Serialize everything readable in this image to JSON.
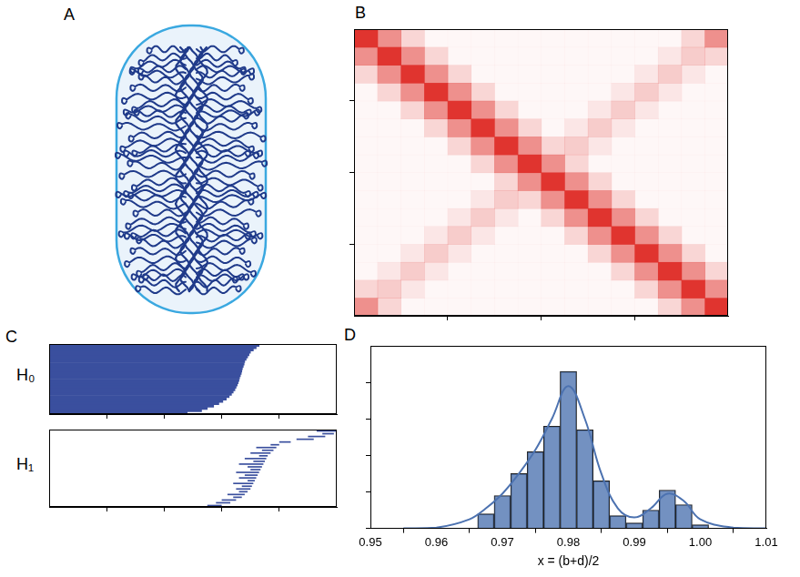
{
  "diagram": {
    "panel": "A"
  },
  "chart_data": [
    {
      "panel": "B",
      "type": "heatmap",
      "color": "#e0342f",
      "xlim": [
        -0.5,
        15.5
      ],
      "ylim": [
        -0.5,
        15.5
      ],
      "xticks": [
        3.5,
        7.5,
        11.5
      ],
      "yticks": [
        3.5,
        7.5,
        11.5
      ],
      "tick_labels": false,
      "cells": [
        [
          1,
          0.55,
          0.2,
          0.04,
          0.04,
          0.04,
          0.04,
          0.04,
          0.04,
          0.04,
          0.04,
          0.04,
          0.04,
          0.04,
          0.2,
          0.55
        ],
        [
          0.55,
          1,
          0.55,
          0.2,
          0.04,
          0.04,
          0.04,
          0.04,
          0.04,
          0.04,
          0.04,
          0.04,
          0.04,
          0.12,
          0.25,
          0.2
        ],
        [
          0.2,
          0.55,
          1,
          0.55,
          0.2,
          0.04,
          0.04,
          0.04,
          0.04,
          0.04,
          0.04,
          0.04,
          0.12,
          0.25,
          0.12,
          0.04
        ],
        [
          0.04,
          0.2,
          0.55,
          1,
          0.55,
          0.2,
          0.04,
          0.04,
          0.04,
          0.04,
          0.04,
          0.12,
          0.25,
          0.12,
          0.04,
          0.04
        ],
        [
          0.04,
          0.04,
          0.2,
          0.55,
          1,
          0.55,
          0.2,
          0.04,
          0.04,
          0.04,
          0.12,
          0.25,
          0.12,
          0.04,
          0.04,
          0.04
        ],
        [
          0.04,
          0.04,
          0.04,
          0.2,
          0.55,
          1,
          0.55,
          0.2,
          0.04,
          0.12,
          0.25,
          0.12,
          0.04,
          0.04,
          0.04,
          0.04
        ],
        [
          0.04,
          0.04,
          0.04,
          0.04,
          0.2,
          0.55,
          1,
          0.55,
          0.2,
          0.25,
          0.12,
          0.04,
          0.04,
          0.04,
          0.04,
          0.04
        ],
        [
          0.04,
          0.04,
          0.04,
          0.04,
          0.04,
          0.2,
          0.55,
          1,
          0.55,
          0.2,
          0.04,
          0.04,
          0.04,
          0.04,
          0.04,
          0.04
        ],
        [
          0.04,
          0.04,
          0.04,
          0.04,
          0.04,
          0.04,
          0.2,
          0.55,
          1,
          0.55,
          0.2,
          0.04,
          0.04,
          0.04,
          0.04,
          0.04
        ],
        [
          0.04,
          0.04,
          0.04,
          0.04,
          0.04,
          0.12,
          0.25,
          0.2,
          0.55,
          1,
          0.55,
          0.2,
          0.04,
          0.04,
          0.04,
          0.04
        ],
        [
          0.04,
          0.04,
          0.04,
          0.04,
          0.12,
          0.25,
          0.12,
          0.04,
          0.2,
          0.55,
          1,
          0.55,
          0.2,
          0.04,
          0.04,
          0.04
        ],
        [
          0.04,
          0.04,
          0.04,
          0.12,
          0.25,
          0.12,
          0.04,
          0.04,
          0.04,
          0.2,
          0.55,
          1,
          0.55,
          0.2,
          0.04,
          0.04
        ],
        [
          0.04,
          0.04,
          0.12,
          0.25,
          0.12,
          0.04,
          0.04,
          0.04,
          0.04,
          0.04,
          0.2,
          0.55,
          1,
          0.55,
          0.2,
          0.04
        ],
        [
          0.04,
          0.12,
          0.25,
          0.12,
          0.04,
          0.04,
          0.04,
          0.04,
          0.04,
          0.04,
          0.04,
          0.2,
          0.55,
          1,
          0.55,
          0.2
        ],
        [
          0.2,
          0.25,
          0.12,
          0.04,
          0.04,
          0.04,
          0.04,
          0.04,
          0.04,
          0.04,
          0.04,
          0.04,
          0.2,
          0.55,
          1,
          0.55
        ],
        [
          0.55,
          0.2,
          0.04,
          0.04,
          0.04,
          0.04,
          0.04,
          0.04,
          0.04,
          0.04,
          0.04,
          0.04,
          0.04,
          0.2,
          0.55,
          1
        ]
      ]
    },
    {
      "panel": "C",
      "type": "barcode",
      "label": "H₀",
      "color": "#3a4f9e",
      "xlim": [
        0,
        1
      ],
      "xticks": [
        0.2,
        0.4,
        0.6,
        0.8
      ],
      "tick_labels": false,
      "intervals": [
        [
          0,
          0.73
        ],
        [
          0,
          0.72
        ],
        [
          0,
          0.71
        ],
        [
          0,
          0.7
        ],
        [
          0,
          0.695
        ],
        [
          0,
          0.69
        ],
        [
          0,
          0.685
        ],
        [
          0,
          0.68
        ],
        [
          0,
          0.678
        ],
        [
          0,
          0.675
        ],
        [
          0,
          0.672
        ],
        [
          0,
          0.67
        ],
        [
          0,
          0.668
        ],
        [
          0,
          0.665
        ],
        [
          0,
          0.662
        ],
        [
          0,
          0.66
        ],
        [
          0,
          0.657
        ],
        [
          0,
          0.654
        ],
        [
          0,
          0.65
        ],
        [
          0,
          0.646
        ],
        [
          0,
          0.64
        ],
        [
          0,
          0.634
        ],
        [
          0,
          0.626
        ],
        [
          0,
          0.616
        ],
        [
          0,
          0.604
        ],
        [
          0,
          0.59
        ],
        [
          0,
          0.572
        ],
        [
          0,
          0.55
        ],
        [
          0,
          0.53
        ],
        [
          0,
          0.48
        ]
      ]
    },
    {
      "type": "barcode",
      "label": "H₁",
      "color": "#3a4f9e",
      "xlim": [
        0,
        1
      ],
      "xticks": [
        0.2,
        0.4,
        0.6,
        0.8
      ],
      "tick_labels": false,
      "intervals": [
        [
          0.93,
          1.0
        ],
        [
          0.95,
          0.99
        ],
        [
          0.9,
          0.96
        ],
        [
          0.86,
          0.92
        ],
        [
          0.8,
          0.84
        ],
        [
          0.77,
          0.8
        ],
        [
          0.72,
          0.79
        ],
        [
          0.74,
          0.78
        ],
        [
          0.7,
          0.77
        ],
        [
          0.73,
          0.76
        ],
        [
          0.68,
          0.755
        ],
        [
          0.71,
          0.75
        ],
        [
          0.66,
          0.745
        ],
        [
          0.69,
          0.74
        ],
        [
          0.7,
          0.735
        ],
        [
          0.65,
          0.73
        ],
        [
          0.68,
          0.725
        ],
        [
          0.66,
          0.72
        ],
        [
          0.69,
          0.715
        ],
        [
          0.64,
          0.71
        ],
        [
          0.67,
          0.705
        ],
        [
          0.65,
          0.7
        ],
        [
          0.66,
          0.69
        ],
        [
          0.62,
          0.68
        ],
        [
          0.64,
          0.67
        ],
        [
          0.6,
          0.65
        ],
        [
          0.58,
          0.63
        ],
        [
          0.55,
          0.6
        ]
      ]
    },
    {
      "panel": "D",
      "type": "histogram",
      "x_label": "x = (b+d)/2",
      "color": "#4c72b0",
      "bins": [
        0.96625,
        0.96875,
        0.97125,
        0.97375,
        0.97625,
        0.97875,
        0.98125,
        0.98375,
        0.98625,
        0.98875,
        0.99125,
        0.99375,
        0.99625,
        0.99875,
        1.00125
      ],
      "counts": [
        0.4,
        0.9,
        1.5,
        2.1,
        2.8,
        4.3,
        2.7,
        1.3,
        0.35,
        0.15,
        0.5,
        1.05,
        0.65,
        0.1
      ],
      "curve": {
        "x": [
          0.955,
          0.96,
          0.965,
          0.9675,
          0.97,
          0.9725,
          0.975,
          0.9775,
          0.98,
          0.9825,
          0.985,
          0.9875,
          0.99,
          0.9925,
          0.995,
          0.9975,
          1.0,
          1.005,
          1.01
        ],
        "values": [
          0,
          0.02,
          0.25,
          0.55,
          0.95,
          1.5,
          2.15,
          3.0,
          3.9,
          3.0,
          1.5,
          0.55,
          0.3,
          0.55,
          0.95,
          0.75,
          0.25,
          0.02,
          0
        ]
      },
      "xlim": [
        0.95,
        1.01
      ],
      "xticks": [
        0.95,
        0.96,
        0.97,
        0.98,
        0.99,
        {
          "value": 1.0,
          "label": "1.00"
        },
        1.01
      ],
      "ylim": [
        0,
        5
      ],
      "yticks": [
        0,
        1,
        2,
        3,
        4
      ],
      "tick_labels": "x"
    }
  ]
}
